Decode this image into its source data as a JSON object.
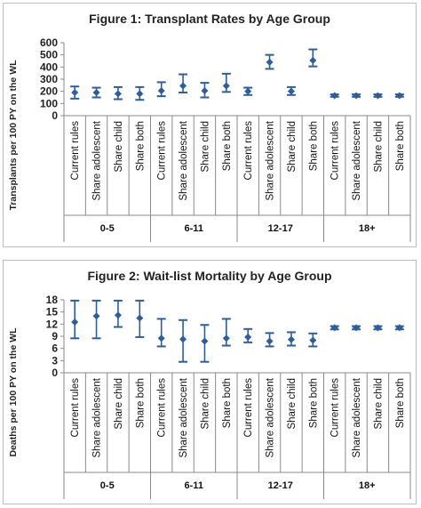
{
  "chart_data": [
    {
      "type": "scatter",
      "title": "Figure 1: Transplant Rates by Age Group",
      "ylabel": "Transplants per 100 PY on the WL",
      "ylim": [
        0,
        600
      ],
      "yticks": [
        0,
        100,
        200,
        300,
        400,
        500,
        600
      ],
      "groups": [
        "0-5",
        "6-11",
        "12-17",
        "18+"
      ],
      "categories": [
        "Current rules",
        "Share adolescent",
        "Share child",
        "Share both"
      ],
      "points": [
        {
          "group": "0-5",
          "category": "Current rules",
          "value": 190,
          "low": 140,
          "high": 240
        },
        {
          "group": "0-5",
          "category": "Share adolescent",
          "value": 190,
          "low": 150,
          "high": 230
        },
        {
          "group": "0-5",
          "category": "Share child",
          "value": 180,
          "low": 135,
          "high": 235
        },
        {
          "group": "0-5",
          "category": "Share both",
          "value": 180,
          "low": 130,
          "high": 235
        },
        {
          "group": "6-11",
          "category": "Current rules",
          "value": 205,
          "low": 160,
          "high": 275
        },
        {
          "group": "6-11",
          "category": "Share adolescent",
          "value": 245,
          "low": 190,
          "high": 340
        },
        {
          "group": "6-11",
          "category": "Share child",
          "value": 205,
          "low": 150,
          "high": 270
        },
        {
          "group": "6-11",
          "category": "Share both",
          "value": 245,
          "low": 195,
          "high": 345
        },
        {
          "group": "12-17",
          "category": "Current rules",
          "value": 200,
          "low": 170,
          "high": 230
        },
        {
          "group": "12-17",
          "category": "Share adolescent",
          "value": 440,
          "low": 385,
          "high": 500
        },
        {
          "group": "12-17",
          "category": "Share child",
          "value": 200,
          "low": 170,
          "high": 235
        },
        {
          "group": "12-17",
          "category": "Share both",
          "value": 455,
          "low": 405,
          "high": 545
        },
        {
          "group": "18+",
          "category": "Current rules",
          "value": 165,
          "low": 155,
          "high": 175
        },
        {
          "group": "18+",
          "category": "Share adolescent",
          "value": 165,
          "low": 155,
          "high": 175
        },
        {
          "group": "18+",
          "category": "Share child",
          "value": 165,
          "low": 155,
          "high": 175
        },
        {
          "group": "18+",
          "category": "Share both",
          "value": 165,
          "low": 155,
          "high": 175
        }
      ]
    },
    {
      "type": "scatter",
      "title": "Figure 2: Wait-list Mortality by Age Group",
      "ylabel": "Deaths per 100 PY on the WL",
      "ylim": [
        0,
        18
      ],
      "yticks": [
        0,
        3,
        6,
        9,
        12,
        15,
        18
      ],
      "groups": [
        "0-5",
        "6-11",
        "12-17",
        "18+"
      ],
      "categories": [
        "Current rules",
        "Share adolescent",
        "Share child",
        "Share both"
      ],
      "points": [
        {
          "group": "0-5",
          "category": "Current rules",
          "value": 12.5,
          "low": 8.5,
          "high": 17.8
        },
        {
          "group": "0-5",
          "category": "Share adolescent",
          "value": 14.0,
          "low": 8.5,
          "high": 17.8
        },
        {
          "group": "0-5",
          "category": "Share child",
          "value": 14.2,
          "low": 11.3,
          "high": 17.8
        },
        {
          "group": "0-5",
          "category": "Share both",
          "value": 13.5,
          "low": 8.8,
          "high": 17.8
        },
        {
          "group": "6-11",
          "category": "Current rules",
          "value": 8.5,
          "low": 6.5,
          "high": 13.3
        },
        {
          "group": "6-11",
          "category": "Share adolescent",
          "value": 8.3,
          "low": 2.7,
          "high": 13.0
        },
        {
          "group": "6-11",
          "category": "Share child",
          "value": 7.8,
          "low": 2.7,
          "high": 11.8
        },
        {
          "group": "6-11",
          "category": "Share both",
          "value": 8.5,
          "low": 6.7,
          "high": 13.3
        },
        {
          "group": "12-17",
          "category": "Current rules",
          "value": 8.8,
          "low": 7.5,
          "high": 10.8
        },
        {
          "group": "12-17",
          "category": "Share adolescent",
          "value": 7.8,
          "low": 6.5,
          "high": 9.8
        },
        {
          "group": "12-17",
          "category": "Share child",
          "value": 8.2,
          "low": 6.7,
          "high": 10.0
        },
        {
          "group": "12-17",
          "category": "Share both",
          "value": 8.0,
          "low": 6.5,
          "high": 9.7
        },
        {
          "group": "18+",
          "category": "Current rules",
          "value": 11.1,
          "low": 10.7,
          "high": 11.5
        },
        {
          "group": "18+",
          "category": "Share adolescent",
          "value": 11.1,
          "low": 10.7,
          "high": 11.5
        },
        {
          "group": "18+",
          "category": "Share child",
          "value": 11.1,
          "low": 10.7,
          "high": 11.5
        },
        {
          "group": "18+",
          "category": "Share both",
          "value": 11.1,
          "low": 10.7,
          "high": 11.5
        }
      ]
    }
  ],
  "colors": {
    "marker": "#2e5d9a",
    "axis": "#8a8a8a",
    "border": "#bdbdbd"
  }
}
